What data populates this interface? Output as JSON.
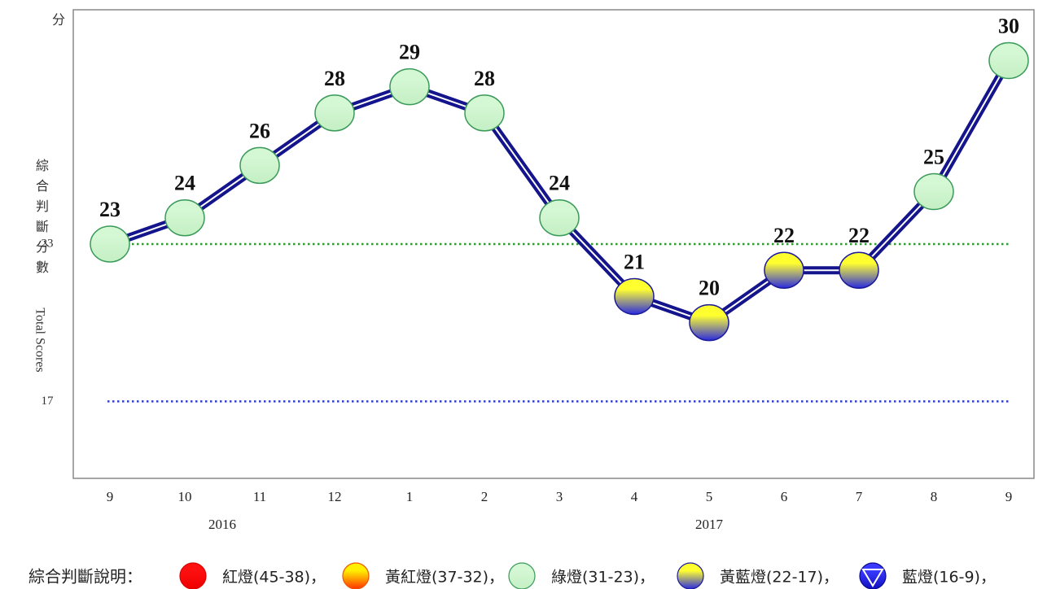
{
  "chart_data": {
    "type": "line",
    "y_unit": "分",
    "y_label_zh": "綜合判斷分數",
    "y_label_en": "Total Scores",
    "categories": [
      "9",
      "10",
      "11",
      "12",
      "1",
      "2",
      "3",
      "4",
      "5",
      "6",
      "7",
      "8",
      "9"
    ],
    "years": [
      "2016",
      "2017"
    ],
    "values": [
      23,
      24,
      26,
      28,
      29,
      28,
      24,
      21,
      20,
      22,
      22,
      25,
      30
    ],
    "line_color": "#14148c",
    "ylim": [
      14,
      32
    ],
    "yticks": [
      17,
      23
    ],
    "grid_colors": [
      "#2f3fd0",
      "#2f9a2f"
    ],
    "legend_title": "綜合判斷說明：",
    "legend": [
      {
        "label": "紅燈(45-38)，",
        "low": 38,
        "high": 45,
        "colors": [
          "#ff1010",
          "#ee0000"
        ],
        "stroke": "#dd0000"
      },
      {
        "label": "黃紅燈(37-32)，",
        "low": 32,
        "high": 37,
        "colors": [
          "#ffee00",
          "#ff3300"
        ],
        "stroke": "#ee5500"
      },
      {
        "label": "綠燈(31-23)，",
        "low": 23,
        "high": 31,
        "colors": [
          "#d4f7d4",
          "#c4efc4"
        ],
        "stroke": "#3a9a5a"
      },
      {
        "label": "黃藍燈(22-17)，",
        "low": 17,
        "high": 22,
        "colors": [
          "#ffff30",
          "#2a2ae0"
        ],
        "stroke": "#1a1a9a"
      },
      {
        "label": "藍燈(16-9)，",
        "low": 9,
        "high": 16,
        "colors": [
          "#3a3aff",
          "#1010c0"
        ],
        "stroke": "#0a0a90"
      }
    ]
  }
}
